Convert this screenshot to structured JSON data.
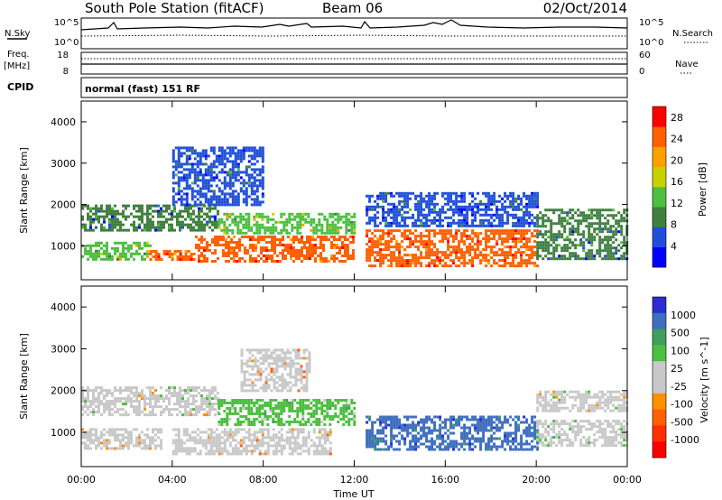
{
  "header": {
    "station": "South Pole Station (fitACF)",
    "beam": "Beam 06",
    "date": "02/Oct/2014"
  },
  "noise_panel": {
    "left_label": "N.Sky",
    "right_label": "N.Search",
    "ticks_left": [
      "10^5",
      "10^0"
    ],
    "ticks_right": [
      "10^5",
      "10^0"
    ]
  },
  "freq_panel": {
    "left_label_1": "Freq.",
    "left_label_2": "[MHz]",
    "right_label": "Nave",
    "ticks_left": [
      "18",
      "8"
    ],
    "ticks_right": [
      "60",
      "0"
    ]
  },
  "cpid": {
    "label": "CPID",
    "text": "normal (fast) 151 RF"
  },
  "colors": {
    "power_scale": [
      "#0000ff",
      "#1f4fd8",
      "#3f7f3f",
      "#4bbf3f",
      "#c8d000",
      "#ffa000",
      "#ff6000",
      "#ff0000"
    ],
    "velocity_scale": [
      "#2c2cd0",
      "#3f6fbf",
      "#3f9f5f",
      "#4bbf3f",
      "#c8c8c8",
      "#c8c8c8",
      "#ff9000",
      "#ff6000",
      "#ff3000",
      "#ff0000"
    ]
  },
  "chart_data": [
    {
      "type": "heatmap",
      "title": "",
      "xlabel": "Time UT",
      "ylabel": "Slant Range [km]",
      "x_ticks": [
        "00:00",
        "04:00",
        "08:00",
        "12:00",
        "16:00",
        "20:00",
        "00:00"
      ],
      "y_ticks": [
        "1000",
        "2000",
        "3000",
        "4000"
      ],
      "ylim": [
        180,
        4500
      ],
      "colorbar": {
        "label": "Power [dB]",
        "ticks": [
          "4",
          "8",
          "12",
          "16",
          "20",
          "24",
          "28"
        ],
        "range": [
          0,
          30
        ]
      },
      "regions": [
        {
          "t0": 0.0,
          "t1": 3.0,
          "r0": 700,
          "r1": 1100,
          "value": 14
        },
        {
          "t0": 0.0,
          "t1": 6.0,
          "r0": 1400,
          "r1": 2000,
          "value": 8
        },
        {
          "t0": 3.0,
          "t1": 5.0,
          "r0": 650,
          "r1": 900,
          "value": 24
        },
        {
          "t0": 5.0,
          "t1": 12.0,
          "r0": 600,
          "r1": 1250,
          "value": 26
        },
        {
          "t0": 6.0,
          "t1": 12.0,
          "r0": 1300,
          "r1": 1800,
          "value": 14
        },
        {
          "t0": 4.0,
          "t1": 8.0,
          "r0": 2000,
          "r1": 3400,
          "value": 6
        },
        {
          "t0": 12.5,
          "t1": 20.0,
          "r0": 500,
          "r1": 1400,
          "value": 26
        },
        {
          "t0": 12.5,
          "t1": 20.0,
          "r0": 1500,
          "r1": 2300,
          "value": 6
        },
        {
          "t0": 20.0,
          "t1": 24.0,
          "r0": 700,
          "r1": 1900,
          "value": 8
        }
      ]
    },
    {
      "type": "heatmap",
      "title": "",
      "xlabel": "Time UT",
      "ylabel": "Slant Range [km]",
      "x_ticks": [
        "00:00",
        "04:00",
        "08:00",
        "12:00",
        "16:00",
        "20:00",
        "00:00"
      ],
      "y_ticks": [
        "1000",
        "2000",
        "3000",
        "4000"
      ],
      "ylim": [
        180,
        4500
      ],
      "colorbar": {
        "label": "Velocity [m s^-1]",
        "ticks": [
          "1000",
          "500",
          "100",
          "25",
          "-25",
          "-100",
          "-500",
          "-1000"
        ],
        "range": [
          -1000,
          1000
        ]
      },
      "regions": [
        {
          "t0": 0.0,
          "t1": 3.5,
          "r0": 600,
          "r1": 1100,
          "value": -100
        },
        {
          "t0": 0.0,
          "t1": 6.0,
          "r0": 1400,
          "r1": 2100,
          "value": 0
        },
        {
          "t0": 4.0,
          "t1": 11.0,
          "r0": 500,
          "r1": 1100,
          "value": -200
        },
        {
          "t0": 6.0,
          "t1": 12.0,
          "r0": 1200,
          "r1": 1800,
          "value": 200
        },
        {
          "t0": 7.0,
          "t1": 10.0,
          "r0": 2000,
          "r1": 3000,
          "value": -200
        },
        {
          "t0": 12.5,
          "t1": 20.0,
          "r0": 600,
          "r1": 1400,
          "value": 700
        },
        {
          "t0": 20.0,
          "t1": 24.0,
          "r0": 700,
          "r1": 1300,
          "value": 150
        },
        {
          "t0": 20.0,
          "t1": 24.0,
          "r0": 1500,
          "r1": 2000,
          "value": 0
        }
      ]
    }
  ]
}
